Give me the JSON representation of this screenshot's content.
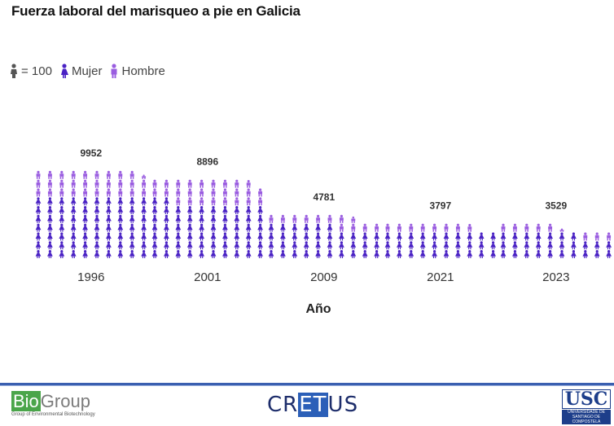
{
  "title": "Fuerza laboral del marisqueo a pie en Galicia",
  "legend": {
    "unit_label": "= 100",
    "mujer_label": "Mujer",
    "hombre_label": "Hombre"
  },
  "colors": {
    "mujer": "#4a22c4",
    "hombre": "#9a5de0",
    "unit": "#555555",
    "text": "#333333"
  },
  "chart_data": {
    "type": "pictogram",
    "title": "Fuerza laboral del marisqueo a pie en Galicia",
    "xlabel": "Año",
    "ylabel": "",
    "unit_per_icon": 100,
    "categories": [
      "1996",
      "2001",
      "2009",
      "2021",
      "2023"
    ],
    "totals": [
      9952,
      8896,
      4781,
      3797,
      3529
    ],
    "series": [
      {
        "name": "Mujer",
        "values": [
          7000,
          6200,
          3600,
          2970,
          2730
        ]
      },
      {
        "name": "Hombre",
        "values": [
          2952,
          2696,
          1181,
          827,
          799
        ]
      }
    ]
  },
  "footer": {
    "biogroup_a": "Bio",
    "biogroup_b": "Group",
    "biogroup_sub": "Group of Environmental Biotechnology",
    "cretus_a": "CR",
    "cretus_b": "ET",
    "cretus_c": "US",
    "usc_main": "USC",
    "usc_sub": "UNIVERSIDADE DE SANTIAGO DE COMPOSTELA"
  }
}
